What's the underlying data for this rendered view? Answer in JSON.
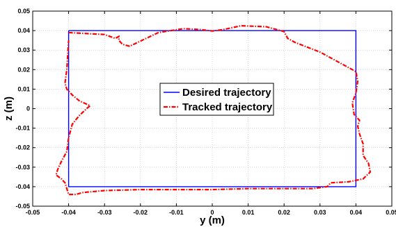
{
  "chart_data": {
    "type": "line",
    "xlabel": "y (m)",
    "ylabel": "z (m)",
    "xlim": [
      -0.05,
      0.05
    ],
    "ylim": [
      -0.05,
      0.05
    ],
    "xticks": [
      -0.05,
      -0.04,
      -0.03,
      -0.02,
      -0.01,
      0,
      0.01,
      0.02,
      0.03,
      0.04,
      0.05
    ],
    "yticks": [
      -0.05,
      -0.04,
      -0.03,
      -0.02,
      -0.01,
      0,
      0.01,
      0.02,
      0.03,
      0.04,
      0.05
    ],
    "xtick_labels": [
      "-0.05",
      "-0.04",
      "-0.03",
      "-0.02",
      "-0.01",
      "0",
      "0.01",
      "0.02",
      "0.03",
      "0.04",
      "0.05"
    ],
    "ytick_labels": [
      "-0.05",
      "-0.04",
      "-0.03",
      "-0.02",
      "-0.01",
      "0",
      "0.01",
      "0.02",
      "0.03",
      "0.04",
      "0.05"
    ],
    "grid": true,
    "legend_position": "center",
    "series": [
      {
        "name": "Desired trajectory",
        "color": "#0000ff",
        "style": "solid",
        "x": [
          -0.04,
          0.04,
          0.04,
          -0.04,
          -0.04
        ],
        "y": [
          0.04,
          0.04,
          -0.04,
          -0.04,
          0.04
        ]
      },
      {
        "name": "Tracked trajectory",
        "color": "#ff0000",
        "style": "dash-dot",
        "x": [
          -0.04,
          -0.03,
          -0.027,
          -0.026,
          -0.026,
          -0.025,
          -0.023,
          -0.015,
          -0.008,
          -0.003,
          0,
          0.003,
          0.008,
          0.015,
          0.02,
          0.021,
          0.023,
          0.03,
          0.036,
          0.04,
          0.0405,
          0.04,
          0.039,
          0.0395,
          0.041,
          0.0405,
          0.041,
          0.042,
          0.042,
          0.0435,
          0.044,
          0.042,
          0.038,
          0.033,
          0.032,
          0.028,
          0.02,
          0.01,
          0,
          -0.01,
          -0.02,
          -0.03,
          -0.036,
          -0.038,
          -0.039,
          -0.04,
          -0.0405,
          -0.041,
          -0.042,
          -0.0435,
          -0.043,
          -0.042,
          -0.0405,
          -0.04,
          -0.039,
          -0.037,
          -0.035,
          -0.034,
          -0.037,
          -0.039,
          -0.0405,
          -0.041,
          -0.0405,
          -0.04
        ],
        "y": [
          0.039,
          0.038,
          0.036,
          0.037,
          0.035,
          0.033,
          0.032,
          0.039,
          0.041,
          0.0405,
          0.0398,
          0.0405,
          0.0425,
          0.042,
          0.0395,
          0.036,
          0.034,
          0.029,
          0.023,
          0.019,
          0.014,
          0.008,
          0.003,
          -0.003,
          -0.006,
          -0.009,
          -0.013,
          -0.018,
          -0.024,
          -0.028,
          -0.0325,
          -0.036,
          -0.0375,
          -0.038,
          -0.04,
          -0.041,
          -0.041,
          -0.041,
          -0.0415,
          -0.0415,
          -0.0415,
          -0.042,
          -0.043,
          -0.044,
          -0.044,
          -0.044,
          -0.041,
          -0.038,
          -0.036,
          -0.034,
          -0.031,
          -0.027,
          -0.022,
          -0.015,
          -0.008,
          -0.0035,
          0.0,
          0.0015,
          0.004,
          0.007,
          0.01,
          0.013,
          0.02,
          0.035
        ]
      }
    ]
  }
}
